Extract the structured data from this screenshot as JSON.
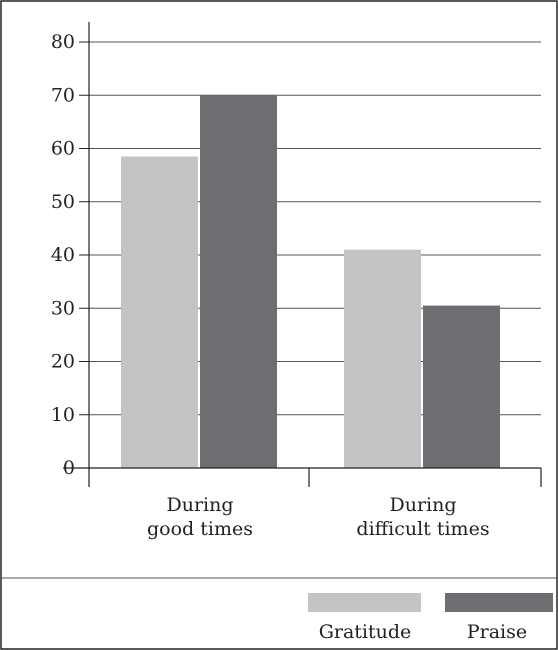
{
  "chart_data": {
    "type": "bar",
    "categories": [
      [
        "During",
        "good times"
      ],
      [
        "During",
        "difficult times"
      ]
    ],
    "series": [
      {
        "name": "Gratitude",
        "values": [
          58.5,
          41
        ],
        "color": "#c4c4c4"
      },
      {
        "name": "Praise",
        "values": [
          70,
          30.5
        ],
        "color": "#6d6e71"
      }
    ],
    "y_ticks": [
      "0",
      "10",
      "20",
      "30",
      "40",
      "50",
      "60",
      "70",
      "80"
    ],
    "ylim": [
      0,
      80
    ],
    "grid": true,
    "legend_position": "bottom-right",
    "title": "",
    "xlabel": "",
    "ylabel": ""
  }
}
